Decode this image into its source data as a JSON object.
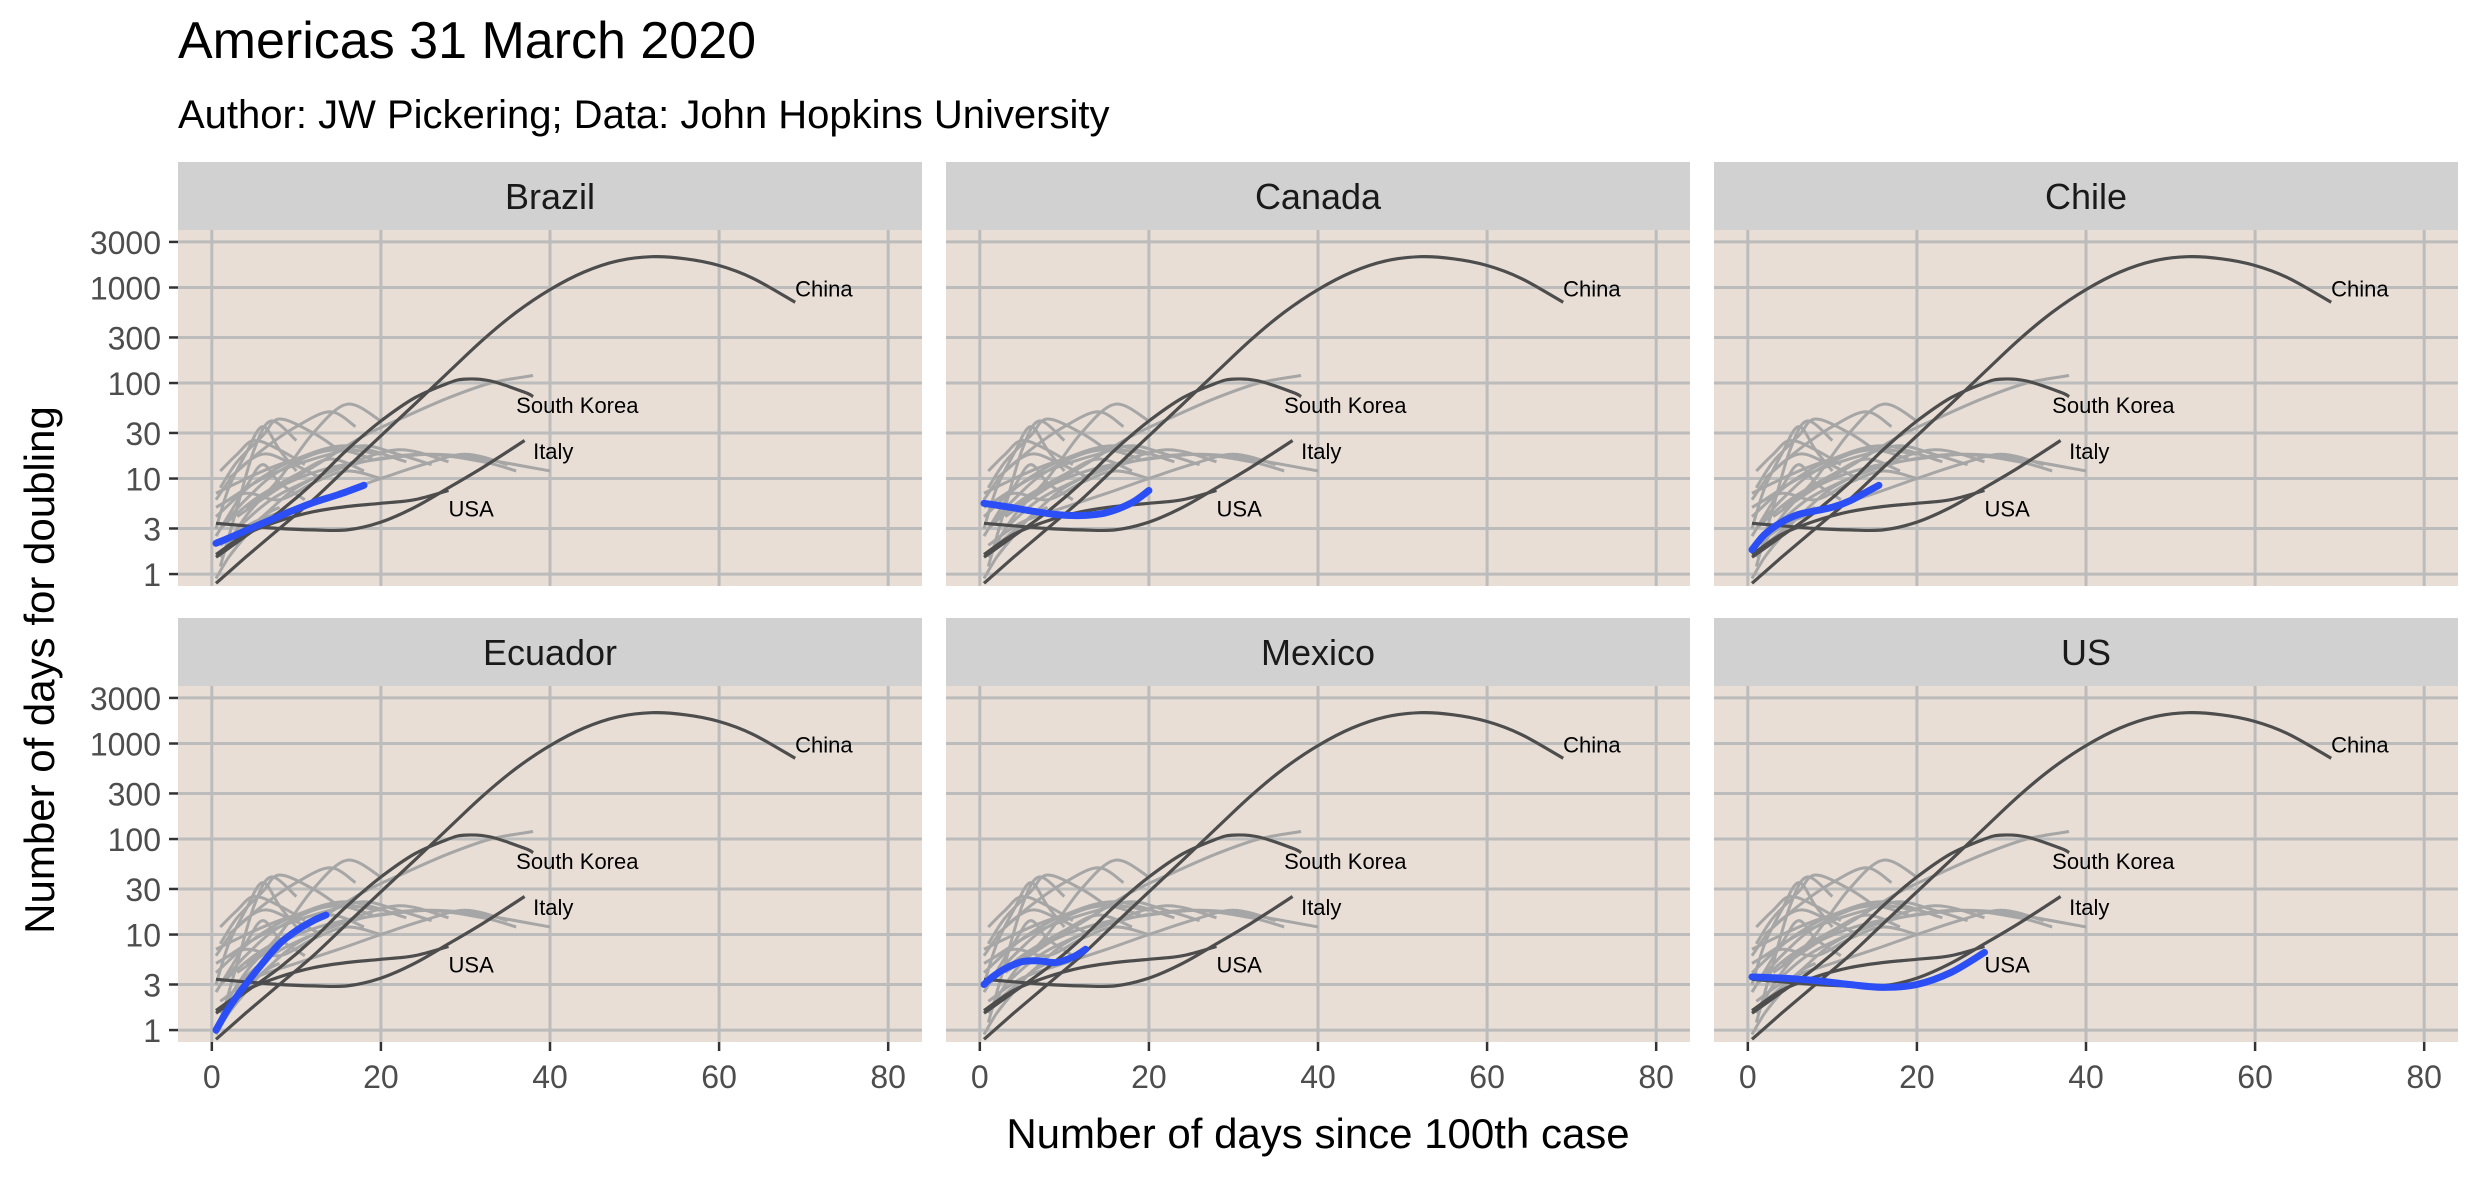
{
  "chart_data": {
    "type": "line",
    "title": "Americas 31 March 2020",
    "subtitle": "Author: JW Pickering; Data: John Hopkins University",
    "xlabel": "Number of days since 100th case",
    "ylabel": "Number of days for doubling",
    "xlim": [
      -4,
      84
    ],
    "ylim": [
      0.75,
      4000
    ],
    "y_scale": "log",
    "x_ticks": [
      0,
      20,
      40,
      60,
      80
    ],
    "y_ticks": [
      1,
      3,
      10,
      30,
      100,
      300,
      1000,
      3000
    ],
    "y_tick_labels": [
      "1",
      "3",
      "10",
      "30",
      "100",
      "300",
      "1000",
      "3000"
    ],
    "grid": true,
    "legend": "none",
    "colors": {
      "panel_bg": "#e8ded6",
      "strip_bg": "#d1d1d1",
      "grid": "#bcbcbc",
      "reference": "#4d4d4d",
      "background_countries": "#a6a6a6",
      "highlight": "#2b4ff5"
    },
    "panels": [
      {
        "name": "Brazil",
        "points": [
          [
            0.5,
            2.1
          ],
          [
            3,
            2.6
          ],
          [
            6,
            3.4
          ],
          [
            9,
            4.4
          ],
          [
            12,
            5.6
          ],
          [
            15,
            6.8
          ],
          [
            18,
            8.5
          ]
        ]
      },
      {
        "name": "Canada",
        "points": [
          [
            0.5,
            5.5
          ],
          [
            3,
            5.1
          ],
          [
            6,
            4.6
          ],
          [
            9,
            4.2
          ],
          [
            12,
            4.1
          ],
          [
            15,
            4.4
          ],
          [
            18,
            5.6
          ],
          [
            20,
            7.5
          ]
        ]
      },
      {
        "name": "Chile",
        "points": [
          [
            0.5,
            1.8
          ],
          [
            2,
            2.6
          ],
          [
            4,
            3.5
          ],
          [
            6,
            4.2
          ],
          [
            8,
            4.6
          ],
          [
            10,
            5.0
          ],
          [
            12,
            5.8
          ],
          [
            14,
            7.2
          ],
          [
            15.5,
            8.5
          ]
        ]
      },
      {
        "name": "Ecuador",
        "points": [
          [
            0.5,
            1.0
          ],
          [
            2,
            1.7
          ],
          [
            4,
            3.0
          ],
          [
            6,
            5.0
          ],
          [
            8,
            8.0
          ],
          [
            10,
            11
          ],
          [
            12,
            14
          ],
          [
            13.5,
            16
          ]
        ]
      },
      {
        "name": "Mexico",
        "points": [
          [
            0.5,
            3.0
          ],
          [
            1.5,
            3.6
          ],
          [
            3,
            4.4
          ],
          [
            5,
            5.2
          ],
          [
            7,
            5.3
          ],
          [
            9,
            5.1
          ],
          [
            11,
            5.8
          ],
          [
            12.5,
            7.0
          ]
        ]
      },
      {
        "name": "US",
        "points": [
          [
            0.5,
            3.6
          ],
          [
            4,
            3.5
          ],
          [
            8,
            3.3
          ],
          [
            12,
            3.0
          ],
          [
            16,
            2.8
          ],
          [
            20,
            3.0
          ],
          [
            24,
            4.0
          ],
          [
            28,
            6.5
          ]
        ]
      }
    ],
    "reference_series": [
      {
        "name": "China",
        "label": "China",
        "label_at": [
          69,
          1000
        ],
        "points": [
          [
            0.5,
            0.8
          ],
          [
            4,
            1.5
          ],
          [
            8,
            3
          ],
          [
            12,
            6
          ],
          [
            16,
            13
          ],
          [
            20,
            28
          ],
          [
            24,
            60
          ],
          [
            28,
            130
          ],
          [
            32,
            280
          ],
          [
            36,
            550
          ],
          [
            40,
            950
          ],
          [
            44,
            1450
          ],
          [
            48,
            1900
          ],
          [
            52,
            2100
          ],
          [
            56,
            2000
          ],
          [
            60,
            1700
          ],
          [
            64,
            1250
          ],
          [
            69,
            700
          ]
        ]
      },
      {
        "name": "South Korea",
        "label": "South Korea",
        "label_at": [
          36,
          60
        ],
        "points": [
          [
            0.5,
            1.5
          ],
          [
            4,
            2.5
          ],
          [
            8,
            4.5
          ],
          [
            12,
            9
          ],
          [
            16,
            20
          ],
          [
            20,
            40
          ],
          [
            24,
            70
          ],
          [
            28,
            100
          ],
          [
            30,
            110
          ],
          [
            33,
            105
          ],
          [
            37,
            80
          ],
          [
            38,
            72
          ]
        ]
      },
      {
        "name": "Italy",
        "label": "Italy",
        "label_at": [
          38,
          20
        ],
        "points": [
          [
            0.5,
            3.4
          ],
          [
            4,
            3.2
          ],
          [
            8,
            3.0
          ],
          [
            12,
            2.9
          ],
          [
            16,
            2.9
          ],
          [
            20,
            3.5
          ],
          [
            24,
            5
          ],
          [
            28,
            8
          ],
          [
            32,
            13
          ],
          [
            37,
            25
          ]
        ]
      },
      {
        "name": "USA",
        "label": "USA",
        "label_at": [
          28,
          5
        ],
        "points": [
          [
            0.5,
            1.6
          ],
          [
            4,
            2.6
          ],
          [
            8,
            3.6
          ],
          [
            12,
            4.5
          ],
          [
            16,
            5.1
          ],
          [
            20,
            5.5
          ],
          [
            24,
            6.0
          ],
          [
            28,
            7.5
          ]
        ]
      }
    ],
    "background_series": [
      [
        [
          0.5,
          2.5
        ],
        [
          4,
          8
        ],
        [
          6,
          14
        ],
        [
          8,
          9
        ],
        [
          11,
          6
        ]
      ],
      [
        [
          1,
          1.2
        ],
        [
          3,
          5
        ],
        [
          5,
          20
        ],
        [
          7,
          40
        ],
        [
          10,
          25
        ]
      ],
      [
        [
          0.5,
          6
        ],
        [
          3,
          12
        ],
        [
          6,
          18
        ],
        [
          9,
          15
        ],
        [
          13,
          10
        ]
      ],
      [
        [
          1,
          3
        ],
        [
          4,
          6
        ],
        [
          8,
          12
        ],
        [
          14,
          20
        ],
        [
          20,
          18
        ]
      ],
      [
        [
          0.5,
          4
        ],
        [
          5,
          9
        ],
        [
          10,
          16
        ],
        [
          16,
          22
        ],
        [
          23,
          15
        ]
      ],
      [
        [
          2,
          2
        ],
        [
          6,
          4
        ],
        [
          10,
          8
        ],
        [
          15,
          13
        ],
        [
          22,
          20
        ],
        [
          28,
          15
        ]
      ],
      [
        [
          1,
          8
        ],
        [
          3,
          15
        ],
        [
          6,
          28
        ],
        [
          8,
          42
        ],
        [
          12,
          30
        ],
        [
          15,
          20
        ]
      ],
      [
        [
          3,
          3
        ],
        [
          7,
          6
        ],
        [
          12,
          10
        ],
        [
          18,
          15
        ],
        [
          25,
          18
        ],
        [
          32,
          15
        ],
        [
          36,
          12
        ]
      ],
      [
        [
          1,
          1.5
        ],
        [
          4,
          4
        ],
        [
          8,
          10
        ],
        [
          12,
          30
        ],
        [
          16,
          60
        ],
        [
          20,
          40
        ]
      ],
      [
        [
          2,
          10
        ],
        [
          6,
          20
        ],
        [
          10,
          35
        ],
        [
          14,
          50
        ],
        [
          17,
          35
        ]
      ],
      [
        [
          0.5,
          5
        ],
        [
          4,
          7
        ],
        [
          8,
          6
        ],
        [
          12,
          9
        ],
        [
          16,
          12
        ],
        [
          20,
          10
        ]
      ],
      [
        [
          1,
          2
        ],
        [
          5,
          3.5
        ],
        [
          10,
          5
        ],
        [
          15,
          7
        ],
        [
          20,
          10
        ],
        [
          25,
          14
        ],
        [
          30,
          18
        ],
        [
          35,
          14
        ]
      ],
      [
        [
          3,
          4
        ],
        [
          8,
          8
        ],
        [
          13,
          15
        ],
        [
          18,
          28
        ],
        [
          23,
          45
        ],
        [
          28,
          70
        ],
        [
          33,
          100
        ],
        [
          38,
          120
        ]
      ],
      [
        [
          1,
          3
        ],
        [
          5,
          6
        ],
        [
          10,
          11
        ],
        [
          14,
          16
        ],
        [
          18,
          12
        ]
      ],
      [
        [
          0.5,
          3
        ],
        [
          2,
          8
        ],
        [
          4,
          18
        ],
        [
          6,
          35
        ],
        [
          8,
          20
        ],
        [
          10,
          12
        ]
      ],
      [
        [
          2,
          6
        ],
        [
          6,
          10
        ],
        [
          10,
          14
        ],
        [
          14,
          18
        ],
        [
          18,
          22
        ],
        [
          22,
          18
        ],
        [
          26,
          14
        ]
      ],
      [
        [
          0.5,
          0.9
        ],
        [
          2,
          1.5
        ],
        [
          4,
          2.5
        ],
        [
          6,
          4
        ],
        [
          8,
          5
        ]
      ],
      [
        [
          4,
          5
        ],
        [
          9,
          9
        ],
        [
          14,
          13
        ],
        [
          20,
          16
        ],
        [
          26,
          18
        ],
        [
          32,
          16
        ],
        [
          40,
          12
        ]
      ],
      [
        [
          1,
          12
        ],
        [
          3,
          18
        ],
        [
          5,
          25
        ],
        [
          8,
          20
        ],
        [
          11,
          14
        ]
      ],
      [
        [
          0.5,
          7
        ],
        [
          3,
          9
        ],
        [
          7,
          13
        ],
        [
          11,
          17
        ],
        [
          15,
          20
        ],
        [
          19,
          16
        ]
      ]
    ]
  }
}
